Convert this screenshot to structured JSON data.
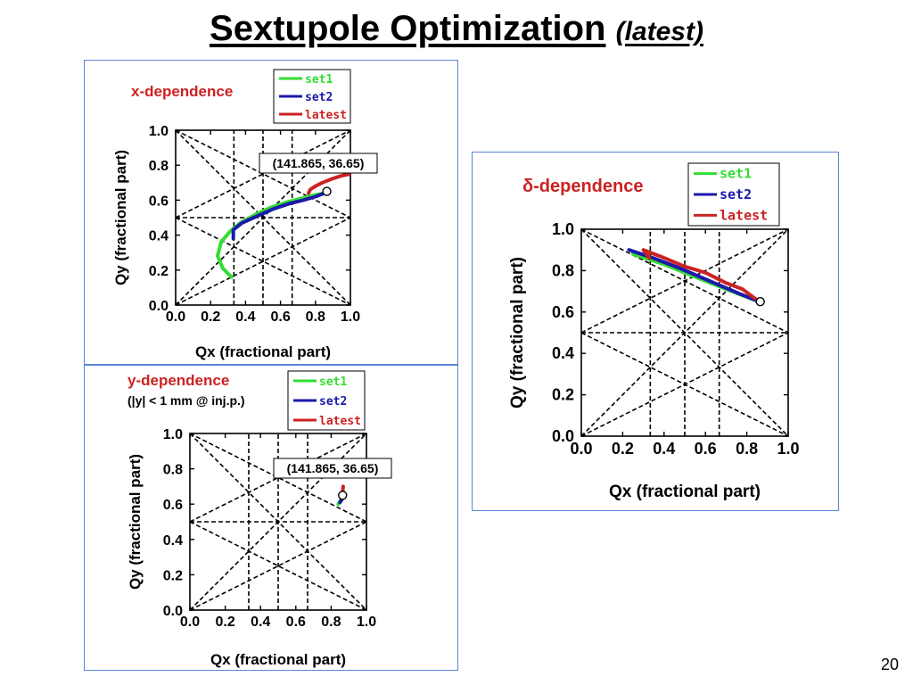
{
  "slide": {
    "title": "Sextupole Optimization",
    "subtitle": "(latest)",
    "page_number": "20"
  },
  "colors": {
    "set1": "#33dd33",
    "set2": "#1a1aaa",
    "latest": "#cc2222",
    "heading": "#cc2222",
    "panel_border": "#5b84d6"
  },
  "chart_data": [
    {
      "id": "x",
      "type": "line",
      "title": "x-dependence",
      "subtitle": "",
      "xlabel": "Qx (fractional part)",
      "ylabel": "Qy (fractional part)",
      "xlim": [
        0,
        1
      ],
      "ylim": [
        0,
        1
      ],
      "xticks": [
        "0.0",
        "0.2",
        "0.4",
        "0.6",
        "0.8",
        "1.0"
      ],
      "yticks": [
        "0.0",
        "0.2",
        "0.4",
        "0.6",
        "0.8",
        "1.0"
      ],
      "annotation": "(141.865, 36.65)",
      "working_point": [
        0.865,
        0.65
      ],
      "legend": [
        "set1",
        "set2",
        "latest"
      ],
      "series": [
        {
          "name": "set1",
          "x": [
            0.32,
            0.27,
            0.24,
            0.26,
            0.31,
            0.37,
            0.46,
            0.55,
            0.64,
            0.72,
            0.8,
            0.85
          ],
          "y": [
            0.16,
            0.21,
            0.28,
            0.36,
            0.42,
            0.47,
            0.52,
            0.56,
            0.59,
            0.61,
            0.63,
            0.64
          ]
        },
        {
          "name": "set2",
          "x": [
            0.33,
            0.33,
            0.38,
            0.47,
            0.56,
            0.65,
            0.73,
            0.8,
            0.85
          ],
          "y": [
            0.38,
            0.43,
            0.47,
            0.51,
            0.55,
            0.58,
            0.6,
            0.62,
            0.64
          ]
        },
        {
          "name": "latest",
          "x": [
            0.76,
            0.77,
            0.8,
            0.84,
            0.89,
            0.95,
            1.0
          ],
          "y": [
            0.64,
            0.66,
            0.68,
            0.7,
            0.72,
            0.74,
            0.75
          ]
        }
      ]
    },
    {
      "id": "y",
      "type": "line",
      "title": "y-dependence",
      "subtitle": "(|y| < 1 mm @ inj.p.)",
      "xlabel": "Qx (fractional part)",
      "ylabel": "Qy (fractional part)",
      "xlim": [
        0,
        1
      ],
      "ylim": [
        0,
        1
      ],
      "xticks": [
        "0.0",
        "0.2",
        "0.4",
        "0.6",
        "0.8",
        "1.0"
      ],
      "yticks": [
        "0.0",
        "0.2",
        "0.4",
        "0.6",
        "0.8",
        "1.0"
      ],
      "annotation": "(141.865, 36.65)",
      "working_point": [
        0.865,
        0.65
      ],
      "legend": [
        "set1",
        "set2",
        "latest"
      ],
      "series": [
        {
          "name": "set1",
          "x": [
            0.84,
            0.86
          ],
          "y": [
            0.6,
            0.63
          ]
        },
        {
          "name": "set2",
          "x": [
            0.85,
            0.87
          ],
          "y": [
            0.61,
            0.64
          ]
        },
        {
          "name": "latest",
          "x": [
            0.862,
            0.865,
            0.868
          ],
          "y": [
            0.64,
            0.67,
            0.7
          ]
        }
      ]
    },
    {
      "id": "d",
      "type": "line",
      "title": "δ-dependence",
      "subtitle": "",
      "xlabel": "Qx (fractional part)",
      "ylabel": "Qy (fractional part)",
      "xlim": [
        0,
        1
      ],
      "ylim": [
        0,
        1
      ],
      "xticks": [
        "0.0",
        "0.2",
        "0.4",
        "0.6",
        "0.8",
        "1.0"
      ],
      "yticks": [
        "0.0",
        "0.2",
        "0.4",
        "0.6",
        "0.8",
        "1.0"
      ],
      "annotation": "",
      "working_point": [
        0.865,
        0.65
      ],
      "legend": [
        "set1",
        "set2",
        "latest"
      ],
      "series": [
        {
          "name": "set1",
          "x": [
            0.25,
            0.4,
            0.55,
            0.7,
            0.86
          ],
          "y": [
            0.88,
            0.83,
            0.77,
            0.71,
            0.65
          ]
        },
        {
          "name": "set2",
          "x": [
            0.23,
            0.35,
            0.48,
            0.62,
            0.76,
            0.86
          ],
          "y": [
            0.9,
            0.86,
            0.81,
            0.75,
            0.69,
            0.65
          ]
        },
        {
          "name": "latest",
          "x": [
            0.33,
            0.3,
            0.38,
            0.5,
            0.6,
            0.7,
            0.78,
            0.86
          ],
          "y": [
            0.86,
            0.9,
            0.87,
            0.82,
            0.79,
            0.74,
            0.71,
            0.65
          ]
        }
      ]
    }
  ]
}
